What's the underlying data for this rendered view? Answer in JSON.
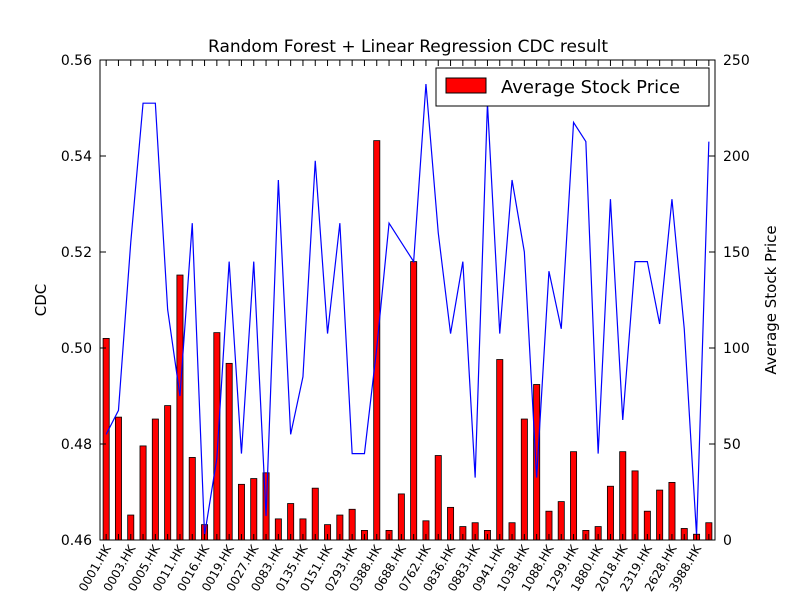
{
  "chart_data": {
    "type": "bar",
    "title": "Random Forest + Linear Regression CDC result",
    "xlabel": "",
    "ylabel": "CDC",
    "ylabel_right": "Average Stock Price",
    "ylim": [
      0.46,
      0.56
    ],
    "ylim_right": [
      0,
      250
    ],
    "yticks": [
      "0.46",
      "0.48",
      "0.50",
      "0.52",
      "0.54",
      "0.56"
    ],
    "yticks_right": [
      "0",
      "50",
      "100",
      "150",
      "200",
      "250"
    ],
    "legend_position": "top-right",
    "tick_labels": [
      "0001.HK",
      "0003.HK",
      "0005.HK",
      "0011.HK",
      "0016.HK",
      "0019.HK",
      "0027.HK",
      "0083.HK",
      "0135.HK",
      "0151.HK",
      "0293.HK",
      "0388.HK",
      "0688.HK",
      "0762.HK",
      "0836.HK",
      "0883.HK",
      "0941.HK",
      "1038.HK",
      "1088.HK",
      "1299.HK",
      "1880.HK",
      "2018.HK",
      "2319.HK",
      "2628.HK",
      "3988.HK"
    ],
    "tick_every": 2,
    "bar_count": 50,
    "series": [
      {
        "name": "Average Stock Price",
        "kind": "bar",
        "axis": "right",
        "color": "#ff0000",
        "values": [
          105,
          64,
          13,
          49,
          63,
          70,
          138,
          43,
          8,
          108,
          92,
          29,
          32,
          35,
          11,
          19,
          11,
          27,
          8,
          13,
          16,
          5,
          208,
          5,
          24,
          145,
          10,
          44,
          17,
          7,
          9,
          5,
          94,
          9,
          63,
          81,
          15,
          20,
          46,
          5,
          7,
          28,
          46,
          36,
          15,
          26,
          30,
          6,
          3,
          9
        ]
      },
      {
        "name": "",
        "kind": "line",
        "axis": "left",
        "color": "#0000ff",
        "values": [
          0.482,
          0.487,
          0.522,
          0.551,
          0.551,
          0.508,
          0.49,
          0.526,
          0.461,
          0.477,
          0.518,
          0.478,
          0.518,
          0.465,
          0.535,
          0.482,
          0.494,
          0.539,
          0.503,
          0.526,
          0.478,
          0.478,
          0.5,
          0.526,
          0.522,
          0.518,
          0.555,
          0.524,
          0.503,
          0.518,
          0.473,
          0.551,
          0.503,
          0.535,
          0.52,
          0.473,
          0.516,
          0.504,
          0.547,
          0.543,
          0.478,
          0.531,
          0.485,
          0.518,
          0.518,
          0.505,
          0.531,
          0.504,
          0.461,
          0.543
        ]
      }
    ]
  }
}
